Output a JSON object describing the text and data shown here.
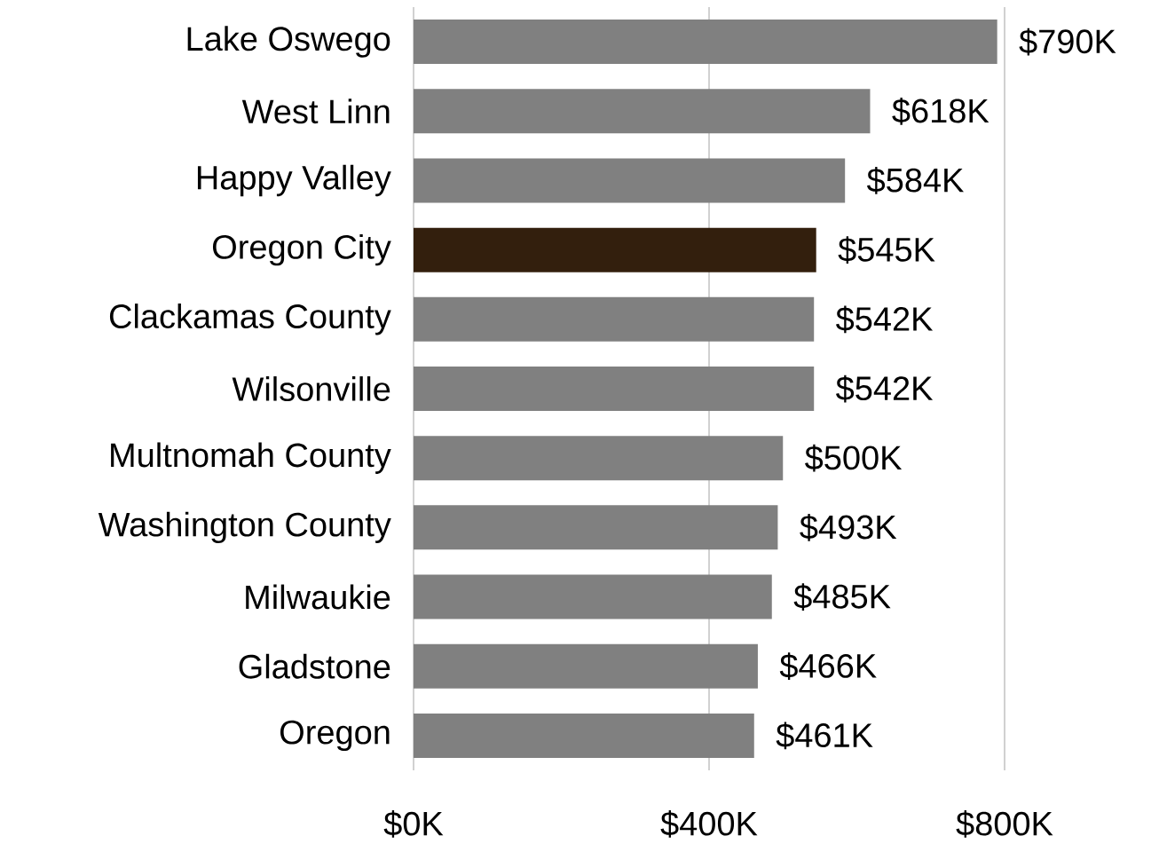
{
  "chart_data": {
    "type": "bar",
    "orientation": "horizontal",
    "categories": [
      "Lake Oswego",
      "West Linn",
      "Happy Valley",
      "Oregon City",
      "Clackamas County",
      "Wilsonville",
      "Multnomah County",
      "Washington County",
      "Milwaukie",
      "Gladstone",
      "Oregon"
    ],
    "values": [
      790,
      618,
      584,
      545,
      542,
      542,
      500,
      493,
      485,
      466,
      461
    ],
    "colors": [
      "#808080",
      "#808080",
      "#808080",
      "#331f0d",
      "#808080",
      "#808080",
      "#808080",
      "#808080",
      "#808080",
      "#808080",
      "#808080"
    ],
    "value_labels": [
      "$790K",
      "$618K",
      "$584K",
      "$545K",
      "$542K",
      "$542K",
      "$500K",
      "$493K",
      "$485K",
      "$466K",
      "$461K"
    ],
    "xlim": [
      0,
      800
    ],
    "xticks": [
      {
        "value": 0,
        "label": "$0K"
      },
      {
        "value": 400,
        "label": "$400K"
      },
      {
        "value": 800,
        "label": "$800K"
      }
    ],
    "grid": "x"
  }
}
